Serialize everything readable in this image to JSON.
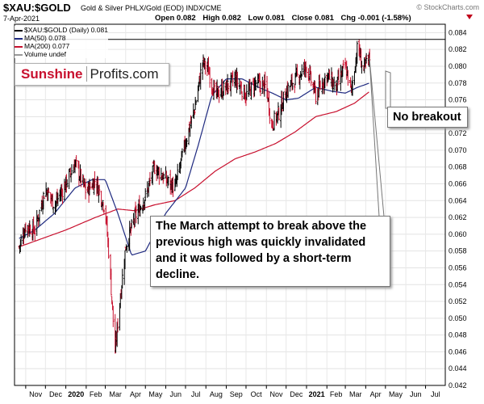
{
  "header": {
    "symbol": "$XAU:$GOLD",
    "description": "Gold & Silver PHLX/Gold (EOD) INDX/CME",
    "watermark": "© StockCharts.com",
    "date": "7-Apr-2021",
    "open": "Open 0.082",
    "high": "High 0.082",
    "low": "Low 0.081",
    "close": "Close 0.081",
    "change": "Chg -0.001 (-1.58%)"
  },
  "legend": {
    "price": "$XAU:$GOLD (Daily) 0.081",
    "ma50": "MA(50) 0.078",
    "ma200": "MA(200) 0.077",
    "volume": "Volume undef"
  },
  "logo": {
    "part1": "Sunshine",
    "part2": "Profits.com"
  },
  "annotations": {
    "breakout": "No breakout",
    "march": "The March attempt to break above the previous high was quickly invalidated and it was followed by a short-term decline."
  },
  "colors": {
    "price_up": "#000000",
    "price_down": "#c8102e",
    "ma50": "#1f2a80",
    "ma200": "#c8102e",
    "resistance": "#000000"
  },
  "chart_data": {
    "type": "line",
    "title": "$XAU:$GOLD",
    "xlabel": "",
    "ylabel": "",
    "ylim": [
      0.042,
      0.085
    ],
    "yticks": [
      0.042,
      0.044,
      0.046,
      0.048,
      0.05,
      0.052,
      0.054,
      0.056,
      0.058,
      0.06,
      0.062,
      0.064,
      0.066,
      0.068,
      0.07,
      0.072,
      0.074,
      0.076,
      0.078,
      0.08,
      0.082,
      0.084
    ],
    "ytick_labels": [
      "0.042",
      "0.044",
      "0.046",
      "0.048",
      "0.050",
      "0.052",
      "0.054",
      "0.056",
      "0.058",
      "0.060",
      "0.062",
      "0.064",
      "0.066",
      "0.068",
      "0.070",
      "0.072",
      "0.074",
      "0.076",
      "0.078",
      "0.080",
      "0.082",
      "0.084"
    ],
    "xticks": [
      "Nov",
      "Dec",
      "2020",
      "Feb",
      "Mar",
      "Apr",
      "May",
      "Jun",
      "Jul",
      "Aug",
      "Sep",
      "Oct",
      "Nov",
      "Dec",
      "2021",
      "Feb",
      "Mar",
      "Apr",
      "May",
      "Jun",
      "Jul"
    ],
    "grid": true,
    "resistance": 0.0832,
    "series": [
      {
        "name": "$XAU:$GOLD (Daily)",
        "x": [
          "2019-10-22",
          "2019-11-01",
          "2019-11-15",
          "2019-12-01",
          "2019-12-15",
          "2020-01-01",
          "2020-01-15",
          "2020-02-01",
          "2020-02-15",
          "2020-03-01",
          "2020-03-08",
          "2020-03-16",
          "2020-03-23",
          "2020-04-01",
          "2020-04-15",
          "2020-05-01",
          "2020-05-15",
          "2020-06-01",
          "2020-06-15",
          "2020-07-01",
          "2020-07-15",
          "2020-07-27",
          "2020-08-05",
          "2020-08-15",
          "2020-09-01",
          "2020-09-15",
          "2020-10-01",
          "2020-10-15",
          "2020-11-01",
          "2020-11-09",
          "2020-11-20",
          "2020-12-01",
          "2020-12-15",
          "2021-01-01",
          "2021-01-15",
          "2021-02-01",
          "2021-02-15",
          "2021-03-01",
          "2021-03-10",
          "2021-03-20",
          "2021-03-28",
          "2021-04-07"
        ],
        "y": [
          0.0585,
          0.061,
          0.0605,
          0.0655,
          0.0635,
          0.066,
          0.0685,
          0.065,
          0.0665,
          0.063,
          0.056,
          0.046,
          0.052,
          0.0585,
          0.062,
          0.0645,
          0.068,
          0.0665,
          0.0655,
          0.071,
          0.075,
          0.0805,
          0.0795,
          0.0765,
          0.0775,
          0.0785,
          0.0765,
          0.078,
          0.0775,
          0.073,
          0.0745,
          0.077,
          0.0785,
          0.08,
          0.0765,
          0.079,
          0.0775,
          0.08,
          0.077,
          0.0825,
          0.0795,
          0.081
        ]
      },
      {
        "name": "MA(50)",
        "x": [
          "2019-10-22",
          "2019-11-15",
          "2019-12-15",
          "2020-01-15",
          "2020-02-10",
          "2020-03-01",
          "2020-03-20",
          "2020-04-10",
          "2020-05-01",
          "2020-06-01",
          "2020-07-01",
          "2020-07-20",
          "2020-08-10",
          "2020-09-01",
          "2020-09-25",
          "2020-10-20",
          "2020-11-10",
          "2020-12-01",
          "2020-12-20",
          "2021-01-15",
          "2021-02-10",
          "2021-03-01",
          "2021-03-20",
          "2021-04-07"
        ],
        "y": [
          0.0595,
          0.0605,
          0.0625,
          0.0655,
          0.0665,
          0.0665,
          0.0625,
          0.0575,
          0.058,
          0.0625,
          0.0655,
          0.0705,
          0.0765,
          0.0785,
          0.0785,
          0.0775,
          0.0768,
          0.076,
          0.0762,
          0.0775,
          0.077,
          0.0768,
          0.0775,
          0.078
        ]
      },
      {
        "name": "MA(200)",
        "x": [
          "2019-10-22",
          "2020-01-01",
          "2020-02-15",
          "2020-03-20",
          "2020-04-15",
          "2020-05-15",
          "2020-06-15",
          "2020-07-15",
          "2020-08-15",
          "2020-09-15",
          "2020-10-15",
          "2020-11-15",
          "2020-12-15",
          "2021-01-15",
          "2021-02-15",
          "2021-03-15",
          "2021-04-07"
        ],
        "y": [
          0.0585,
          0.0605,
          0.062,
          0.063,
          0.0628,
          0.0635,
          0.064,
          0.0655,
          0.0675,
          0.069,
          0.0698,
          0.0708,
          0.0722,
          0.074,
          0.0746,
          0.0756,
          0.077
        ]
      }
    ]
  }
}
